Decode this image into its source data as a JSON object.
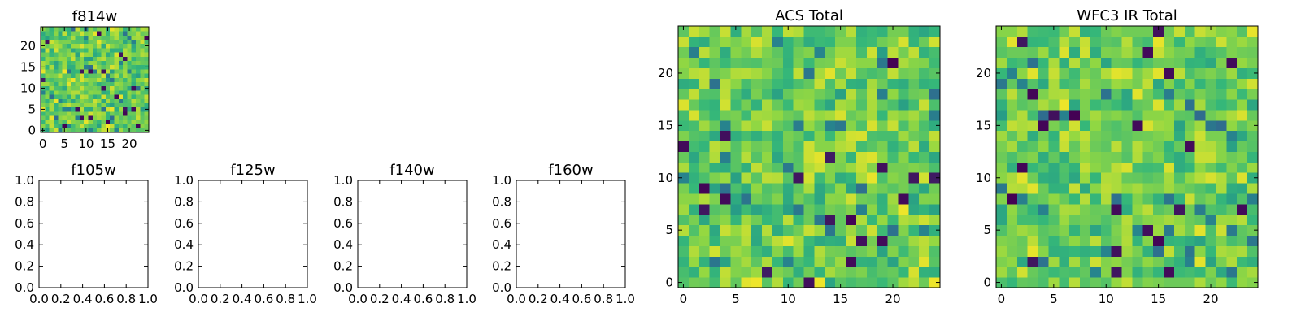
{
  "figure": {
    "colormap": "viridis",
    "colors": [
      "#440154",
      "#31688e",
      "#21918c",
      "#35b779",
      "#90d743",
      "#fde725"
    ]
  },
  "chart_data": [
    {
      "id": "f814w",
      "type": "heatmap",
      "title": "f814w",
      "xlim": [
        -0.5,
        24.5
      ],
      "ylim": [
        -0.5,
        24.5
      ],
      "xticks": [
        0,
        5,
        10,
        15,
        20
      ],
      "yticks": [
        0,
        5,
        10,
        15,
        20
      ],
      "xtick_labels": [
        "0",
        "5",
        "10",
        "15",
        "20"
      ],
      "ytick_labels": [
        "0",
        "5",
        "10",
        "15",
        "20"
      ],
      "grid_size": [
        25,
        25
      ],
      "seed": 814,
      "values": []
    },
    {
      "id": "acs-total",
      "type": "heatmap",
      "title": "ACS Total",
      "xlim": [
        -0.5,
        24.5
      ],
      "ylim": [
        -0.5,
        24.5
      ],
      "xticks": [
        0,
        5,
        10,
        15,
        20
      ],
      "yticks": [
        0,
        5,
        10,
        15,
        20
      ],
      "xtick_labels": [
        "0",
        "5",
        "10",
        "15",
        "20"
      ],
      "ytick_labels": [
        "0",
        "5",
        "10",
        "15",
        "20"
      ],
      "grid_size": [
        25,
        25
      ],
      "seed": 1234,
      "values": []
    },
    {
      "id": "wfc3-ir-total",
      "type": "heatmap",
      "title": "WFC3 IR Total",
      "xlim": [
        -0.5,
        24.5
      ],
      "ylim": [
        -0.5,
        24.5
      ],
      "xticks": [
        0,
        5,
        10,
        15,
        20
      ],
      "yticks": [
        0,
        5,
        10,
        15,
        20
      ],
      "xtick_labels": [
        "0",
        "5",
        "10",
        "15",
        "20"
      ],
      "ytick_labels": [
        "0",
        "5",
        "10",
        "15",
        "20"
      ],
      "grid_size": [
        25,
        25
      ],
      "seed": 4321,
      "values": []
    },
    {
      "id": "f105w",
      "type": "heatmap",
      "title": "f105w",
      "xlim": [
        0,
        1
      ],
      "ylim": [
        0,
        1
      ],
      "xticks": [
        0,
        0.2,
        0.4,
        0.6,
        0.8,
        1.0
      ],
      "yticks": [
        0,
        0.2,
        0.4,
        0.6,
        0.8,
        1.0
      ],
      "xtick_labels": [
        "0.0",
        "0.2",
        "0.4",
        "0.6",
        "0.8",
        "1.0"
      ],
      "ytick_labels": [
        "0.0",
        "0.2",
        "0.4",
        "0.6",
        "0.8",
        "1.0"
      ],
      "values": []
    },
    {
      "id": "f125w",
      "type": "heatmap",
      "title": "f125w",
      "xlim": [
        0,
        1
      ],
      "ylim": [
        0,
        1
      ],
      "xticks": [
        0,
        0.2,
        0.4,
        0.6,
        0.8,
        1.0
      ],
      "yticks": [
        0,
        0.2,
        0.4,
        0.6,
        0.8,
        1.0
      ],
      "xtick_labels": [
        "0.0",
        "0.2",
        "0.4",
        "0.6",
        "0.8",
        "1.0"
      ],
      "ytick_labels": [
        "0.0",
        "0.2",
        "0.4",
        "0.6",
        "0.8",
        "1.0"
      ],
      "values": []
    },
    {
      "id": "f140w",
      "type": "heatmap",
      "title": "f140w",
      "xlim": [
        0,
        1
      ],
      "ylim": [
        0,
        1
      ],
      "xticks": [
        0,
        0.2,
        0.4,
        0.6,
        0.8,
        1.0
      ],
      "yticks": [
        0,
        0.2,
        0.4,
        0.6,
        0.8,
        1.0
      ],
      "xtick_labels": [
        "0.0",
        "0.2",
        "0.4",
        "0.6",
        "0.8",
        "1.0"
      ],
      "ytick_labels": [
        "0.0",
        "0.2",
        "0.4",
        "0.6",
        "0.8",
        "1.0"
      ],
      "values": []
    },
    {
      "id": "f160w",
      "type": "heatmap",
      "title": "f160w",
      "xlim": [
        0,
        1
      ],
      "ylim": [
        0,
        1
      ],
      "xticks": [
        0,
        0.2,
        0.4,
        0.6,
        0.8,
        1.0
      ],
      "yticks": [
        0,
        0.2,
        0.4,
        0.6,
        0.8,
        1.0
      ],
      "xtick_labels": [
        "0.0",
        "0.2",
        "0.4",
        "0.6",
        "0.8",
        "1.0"
      ],
      "ytick_labels": [
        "0.0",
        "0.2",
        "0.4",
        "0.6",
        "0.8",
        "1.0"
      ],
      "values": []
    }
  ]
}
